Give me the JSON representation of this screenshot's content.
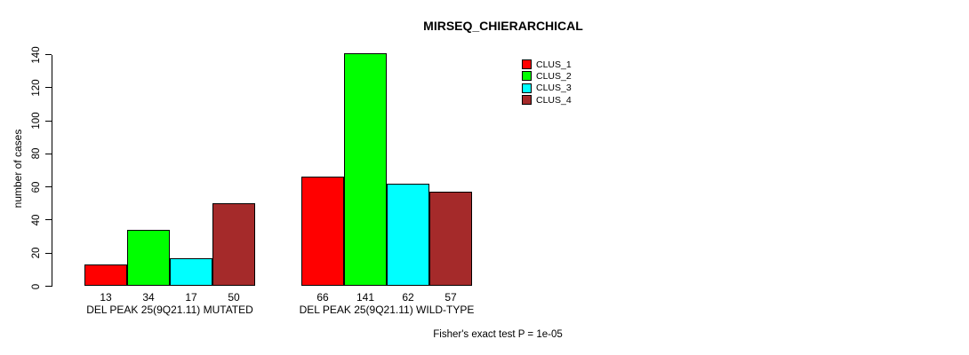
{
  "chart_data": {
    "type": "bar",
    "title": "MIRSEQ_CHIERARCHICAL",
    "ylabel": "number of cases",
    "ylim": [
      0,
      140
    ],
    "yticks": [
      0,
      20,
      40,
      60,
      80,
      100,
      120,
      140
    ],
    "grid": false,
    "legend_position": "top-right",
    "categories": [
      "DEL PEAK 25(9Q21.11) MUTATED",
      "DEL PEAK 25(9Q21.11) WILD-TYPE"
    ],
    "series": [
      {
        "name": "CLUS_1",
        "color": "#FF0000",
        "values": [
          13,
          66
        ]
      },
      {
        "name": "CLUS_2",
        "color": "#00FF00",
        "values": [
          34,
          141
        ]
      },
      {
        "name": "CLUS_3",
        "color": "#00FFFF",
        "values": [
          17,
          62
        ]
      },
      {
        "name": "CLUS_4",
        "color": "#A52A2A",
        "values": [
          50,
          57
        ]
      }
    ],
    "bar_value_labels": true,
    "annotation": "Fisher's exact test P = 1e-05",
    "colors": {
      "bar_border": "#000000",
      "text": "#000000",
      "background": "#FFFFFF"
    }
  }
}
